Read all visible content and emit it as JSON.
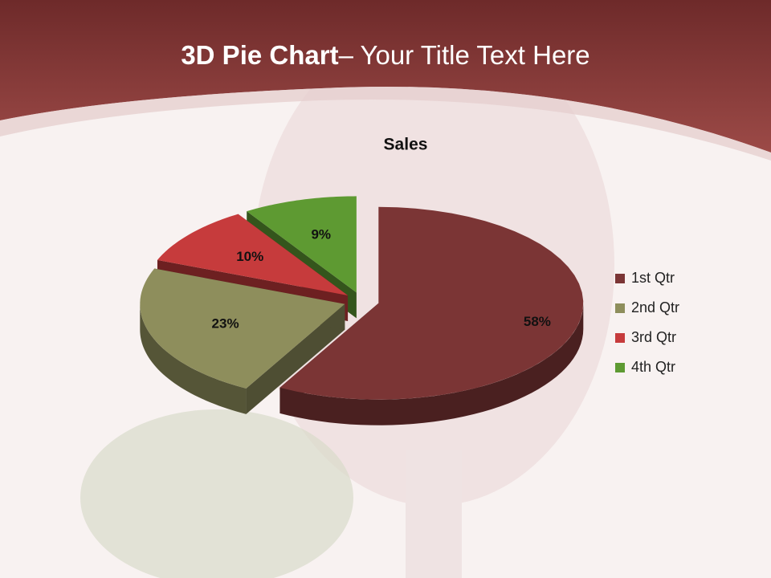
{
  "slide_title": {
    "bold": "3D Pie Chart",
    "rest": "– Your Title Text Here"
  },
  "chart_data": {
    "type": "pie",
    "title": "Sales",
    "categories": [
      "1st Qtr",
      "2nd Qtr",
      "3rd Qtr",
      "4th Qtr"
    ],
    "values": [
      58,
      23,
      10,
      9
    ],
    "value_labels": [
      "58%",
      "23%",
      "10%",
      "9%"
    ],
    "colors": [
      "#7b3535",
      "#8e8e5c",
      "#c63b3c",
      "#5e9a32"
    ],
    "legend": "right"
  }
}
